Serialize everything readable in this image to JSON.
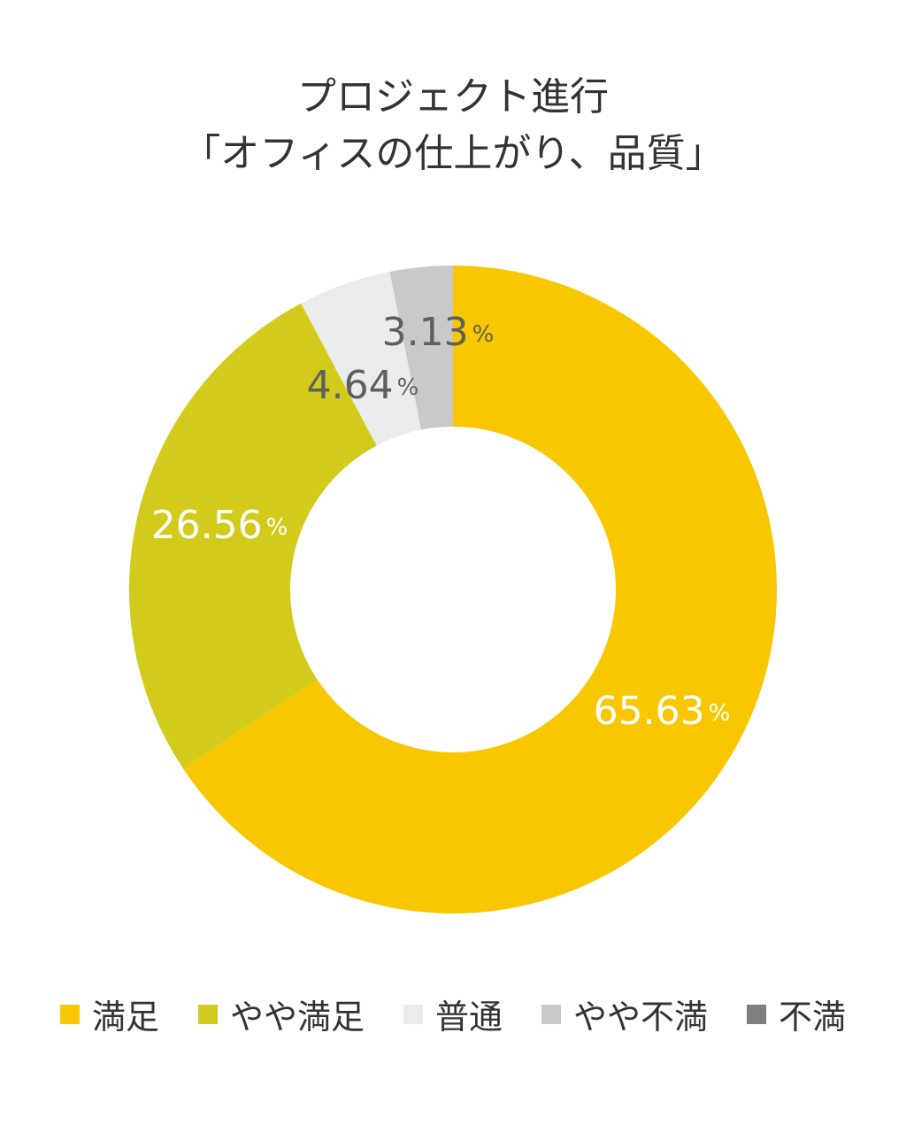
{
  "chart_data": {
    "type": "pie",
    "variant": "donut",
    "title_lines": [
      "プロジェクト進行",
      "「オフィスの仕上がり、品質」"
    ],
    "start_angle": "top",
    "direction": "clockwise",
    "percent_symbol": "%",
    "series": [
      {
        "name": "満足",
        "value": 65.63,
        "label": "65.63",
        "color": "#F9C700",
        "label_color": "#ffffff"
      },
      {
        "name": "やや満足",
        "value": 26.56,
        "label": "26.56",
        "color": "#D2CB1C",
        "label_color": "#ffffff"
      },
      {
        "name": "普通",
        "value": 4.64,
        "label": "4.64",
        "color": "#EBEBEB",
        "label_color": "#5f5f5f"
      },
      {
        "name": "やや不満",
        "value": 3.13,
        "label": "3.13",
        "color": "#C9C9C9",
        "label_color": "#5f5f5f"
      },
      {
        "name": "不満",
        "value": 0,
        "label": "",
        "color": "#7F7F7F",
        "label_color": "#5f5f5f"
      }
    ],
    "legend_position": "bottom"
  }
}
